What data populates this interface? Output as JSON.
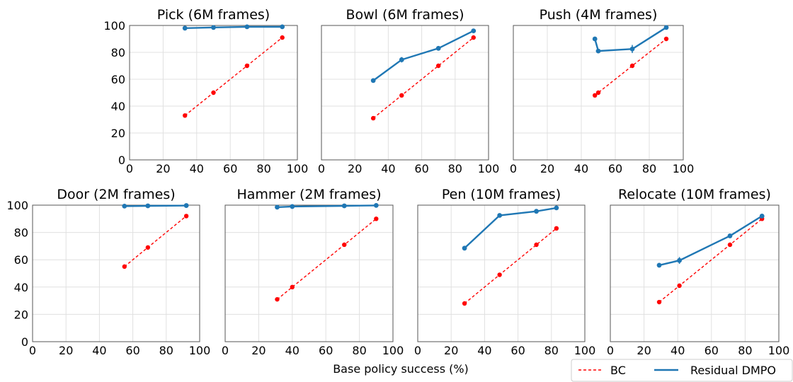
{
  "figure": {
    "xlabel": "Base policy success (%)"
  },
  "legend": {
    "bc": "BC",
    "residual": "Residual DMPO",
    "bc_color": "#ff0000",
    "residual_color": "#1f77b4"
  },
  "chart_data": [
    {
      "type": "line",
      "title": "Pick (6M frames)",
      "xlim": [
        0,
        100
      ],
      "ylim": [
        0,
        100
      ],
      "xticks": [
        "0",
        "20",
        "40",
        "60",
        "80",
        "100"
      ],
      "yticks": [
        "0",
        "20",
        "40",
        "60",
        "80",
        "100"
      ],
      "show_ytick_labels": true,
      "grid": true,
      "series": [
        {
          "name": "BC",
          "x": [
            33,
            50,
            70,
            91
          ],
          "y": [
            33,
            50,
            70,
            91
          ]
        },
        {
          "name": "Residual DMPO",
          "x": [
            33,
            50,
            70,
            91
          ],
          "y": [
            98,
            98.5,
            99,
            99
          ],
          "yerr": [
            0.5,
            0.5,
            0.5,
            0.5
          ]
        }
      ]
    },
    {
      "type": "line",
      "title": "Bowl (6M frames)",
      "xlim": [
        0,
        100
      ],
      "ylim": [
        0,
        100
      ],
      "xticks": [
        "0",
        "20",
        "40",
        "60",
        "80",
        "100"
      ],
      "yticks": [
        "0",
        "20",
        "40",
        "60",
        "80",
        "100"
      ],
      "show_ytick_labels": false,
      "grid": true,
      "series": [
        {
          "name": "BC",
          "x": [
            31,
            48,
            70,
            91
          ],
          "y": [
            31,
            48,
            70,
            91
          ]
        },
        {
          "name": "Residual DMPO",
          "x": [
            31,
            48,
            70,
            91
          ],
          "y": [
            59,
            74.5,
            83,
            96
          ],
          "yerr": [
            0.5,
            2,
            0.5,
            1
          ]
        }
      ]
    },
    {
      "type": "line",
      "title": "Push (4M frames)",
      "xlim": [
        0,
        100
      ],
      "ylim": [
        0,
        100
      ],
      "xticks": [
        "0",
        "20",
        "40",
        "60",
        "80",
        "100"
      ],
      "yticks": [
        "0",
        "20",
        "40",
        "60",
        "80",
        "100"
      ],
      "show_ytick_labels": false,
      "grid": true,
      "series": [
        {
          "name": "BC",
          "x": [
            48,
            50,
            70,
            90
          ],
          "y": [
            48,
            50,
            70,
            90
          ]
        },
        {
          "name": "Residual DMPO",
          "x": [
            48,
            50,
            70,
            90
          ],
          "y": [
            90,
            81,
            82.5,
            98.5
          ],
          "yerr": [
            1,
            1,
            3,
            0.5
          ]
        }
      ]
    },
    {
      "type": "line",
      "title": "Door (2M frames)",
      "xlim": [
        0,
        100
      ],
      "ylim": [
        0,
        100
      ],
      "xticks": [
        "0",
        "20",
        "40",
        "60",
        "80",
        "100"
      ],
      "yticks": [
        "0",
        "20",
        "40",
        "60",
        "80",
        "100"
      ],
      "show_ytick_labels": true,
      "grid": true,
      "series": [
        {
          "name": "BC",
          "x": [
            55,
            69,
            92
          ],
          "y": [
            55,
            69,
            92
          ]
        },
        {
          "name": "Residual DMPO",
          "x": [
            55,
            69,
            92
          ],
          "y": [
            99.3,
            99.5,
            99.7
          ],
          "yerr": [
            0.5,
            0.5,
            0.5
          ]
        }
      ]
    },
    {
      "type": "line",
      "title": "Hammer (2M frames)",
      "xlim": [
        0,
        100
      ],
      "ylim": [
        0,
        100
      ],
      "xticks": [
        "0",
        "20",
        "40",
        "60",
        "80",
        "100"
      ],
      "yticks": [
        "0",
        "20",
        "40",
        "60",
        "80",
        "100"
      ],
      "show_ytick_labels": false,
      "grid": true,
      "series": [
        {
          "name": "BC",
          "x": [
            31,
            40,
            71,
            90
          ],
          "y": [
            31,
            40,
            71,
            90
          ]
        },
        {
          "name": "Residual DMPO",
          "x": [
            31,
            40,
            71,
            90
          ],
          "y": [
            98.5,
            99,
            99.5,
            99.8
          ],
          "yerr": [
            0.5,
            0.5,
            0.5,
            0.5
          ]
        }
      ]
    },
    {
      "type": "line",
      "title": "Pen (10M frames)",
      "xlim": [
        0,
        100
      ],
      "ylim": [
        0,
        100
      ],
      "xticks": [
        "0",
        "20",
        "40",
        "60",
        "80",
        "100"
      ],
      "yticks": [
        "0",
        "20",
        "40",
        "60",
        "80",
        "100"
      ],
      "show_ytick_labels": false,
      "grid": true,
      "series": [
        {
          "name": "BC",
          "x": [
            28,
            49,
            71,
            83
          ],
          "y": [
            28,
            49,
            71,
            83
          ]
        },
        {
          "name": "Residual DMPO",
          "x": [
            28,
            49,
            71,
            83
          ],
          "y": [
            68.5,
            92.5,
            95.5,
            98
          ],
          "yerr": [
            0.5,
            1,
            1,
            1
          ]
        }
      ]
    },
    {
      "type": "line",
      "title": "Relocate (10M frames)",
      "xlim": [
        0,
        100
      ],
      "ylim": [
        0,
        100
      ],
      "xticks": [
        "0",
        "20",
        "40",
        "60",
        "80",
        "100"
      ],
      "yticks": [
        "0",
        "20",
        "40",
        "60",
        "80",
        "100"
      ],
      "show_ytick_labels": false,
      "grid": true,
      "series": [
        {
          "name": "BC",
          "x": [
            29,
            41,
            71,
            90
          ],
          "y": [
            29,
            41,
            71,
            90
          ]
        },
        {
          "name": "Residual DMPO",
          "x": [
            29,
            41,
            71,
            90
          ],
          "y": [
            56,
            59.5,
            77.5,
            92
          ],
          "yerr": [
            1.5,
            2.5,
            1.5,
            1.5
          ]
        }
      ]
    }
  ]
}
